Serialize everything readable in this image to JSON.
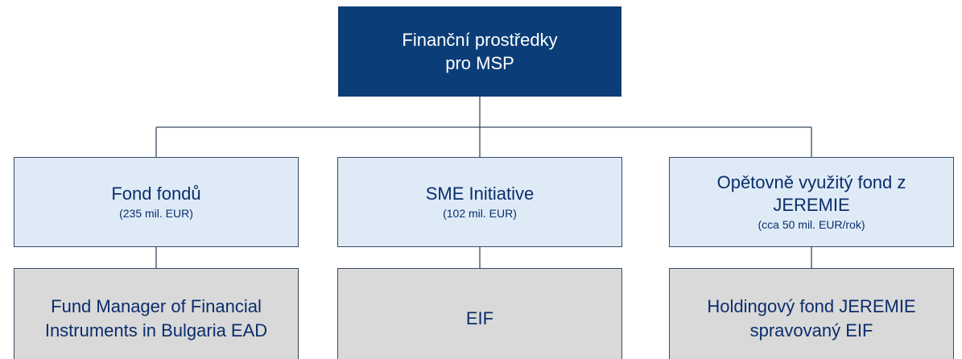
{
  "root": {
    "lines": [
      "Finanční prostředky",
      "pro MSP"
    ]
  },
  "funds": [
    {
      "lines": [
        "Fond fondů"
      ],
      "amount": "(235 mil. EUR)"
    },
    {
      "lines": [
        "SME Initiative"
      ],
      "amount": "(102 mil. EUR)"
    },
    {
      "lines": [
        "Opětovně využitý fond z",
        "JEREMIE"
      ],
      "amount": "(cca 50 mil. EUR/rok)"
    }
  ],
  "managers": [
    {
      "lines": [
        "Fund Manager of Financial",
        "Instruments in Bulgaria EAD"
      ]
    },
    {
      "lines": [
        "EIF"
      ]
    },
    {
      "lines": [
        "Holdingový fond JEREMIE",
        "spravovaný EIF"
      ]
    }
  ]
}
